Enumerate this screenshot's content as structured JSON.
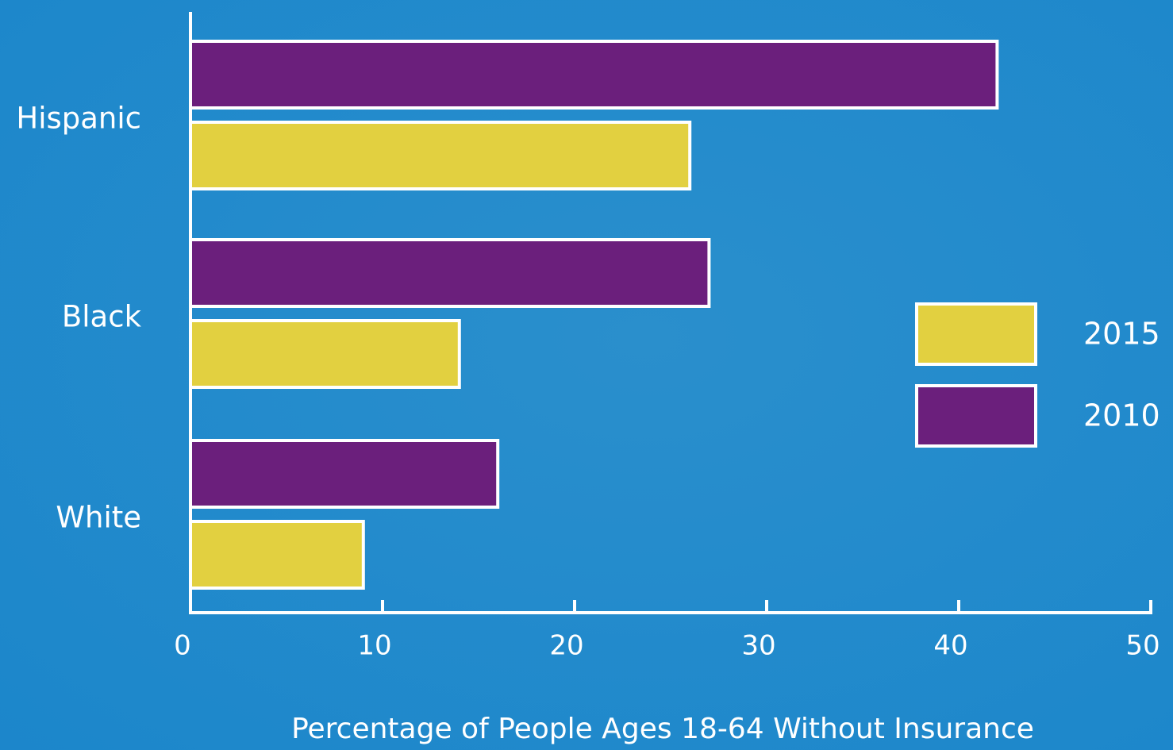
{
  "chart_data": {
    "type": "hbar",
    "x_label": "Percentage of People Ages 18-64 Without Insurance",
    "categories": [
      "Hispanic",
      "Black",
      "White"
    ],
    "series": [
      {
        "name": "2015",
        "color": "#e2d040",
        "values": [
          26,
          14,
          9
        ]
      },
      {
        "name": "2010",
        "color": "#6b1f7c",
        "values": [
          42,
          27,
          16
        ]
      }
    ],
    "xlim": [
      0,
      50
    ],
    "xticks": [
      0,
      10,
      20,
      30,
      40,
      50
    ]
  }
}
